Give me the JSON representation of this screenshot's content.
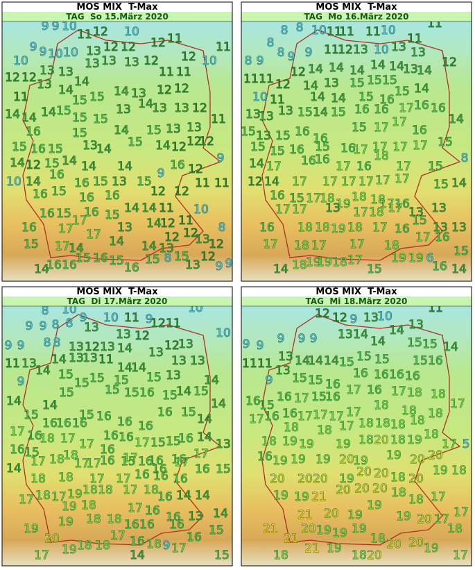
{
  "panels": [
    {
      "title": "MOS MIX  T-Max",
      "subtitle": "TAG  So 15.März 2020",
      "values": [
        9,
        9,
        10,
        11,
        12,
        10,
        12,
        11,
        11,
        9,
        9,
        10,
        10,
        13,
        12,
        12,
        12,
        10,
        10,
        13,
        13,
        13,
        12,
        12,
        12,
        13,
        13,
        14,
        13,
        11,
        11,
        11,
        14,
        14,
        13,
        12,
        12,
        14,
        14,
        14,
        15,
        15,
        15,
        14,
        13,
        13,
        12,
        15,
        15,
        13,
        16,
        15,
        14,
        15,
        13,
        13,
        11,
        15,
        16,
        15,
        13,
        14,
        15,
        14,
        12,
        12,
        12,
        14,
        12,
        15,
        14,
        14,
        14,
        9,
        16,
        12,
        9,
        10,
        14,
        16,
        16,
        15,
        13,
        15,
        12,
        12,
        11,
        11,
        16,
        15,
        16,
        16,
        14,
        14,
        11,
        10,
        16,
        15,
        17,
        16,
        15,
        14,
        12,
        11,
        16,
        17,
        17,
        13,
        12,
        12,
        8,
        15,
        17,
        14,
        14,
        14,
        13,
        13,
        12,
        14,
        16,
        16,
        15,
        16,
        15,
        16,
        15,
        8,
        15,
        13,
        12,
        9,
        9
      ]
    },
    {
      "title": "MOS MIX  T-Max",
      "subtitle": "TAG  Mo 16.März 2020",
      "values": [
        8,
        8,
        10,
        11,
        11,
        11,
        10,
        11,
        8,
        8,
        9,
        9,
        11,
        12,
        13,
        10,
        13,
        11,
        13,
        12,
        8,
        9,
        12,
        14,
        14,
        14,
        14,
        14,
        13,
        14,
        11,
        11,
        12,
        14,
        13,
        15,
        15,
        15,
        10,
        11,
        14,
        14,
        15,
        16,
        15,
        14,
        13,
        13,
        13,
        15,
        14,
        15,
        16,
        16,
        17,
        16,
        16,
        15,
        13,
        15,
        16,
        16,
        15,
        17,
        17,
        16,
        14,
        15,
        15,
        16,
        15,
        16,
        17,
        17,
        17,
        17,
        15,
        14,
        17,
        16,
        16,
        17,
        16,
        18,
        17,
        15,
        8,
        12,
        14,
        17,
        17,
        17,
        17,
        17,
        17,
        15,
        14,
        16,
        15,
        17,
        18,
        19,
        18,
        18,
        17,
        16,
        17,
        17,
        13,
        17,
        18,
        17,
        13,
        13,
        16,
        18,
        18,
        19,
        18,
        17,
        16,
        15,
        13,
        13,
        17,
        18,
        17,
        17,
        18,
        17,
        16,
        14,
        18,
        19,
        19,
        18,
        17,
        15,
        19,
        19,
        6,
        16,
        14,
        15
      ]
    },
    {
      "title": "MOS MIX  T-Max",
      "subtitle": "TAG  Di 17.März 2020",
      "values": [
        8,
        10,
        9,
        10,
        11,
        9,
        10,
        10,
        11,
        12,
        9,
        9,
        8,
        8,
        13,
        13,
        12,
        12,
        9,
        9,
        8,
        8,
        13,
        12,
        13,
        14,
        13,
        13,
        11,
        13,
        14,
        14,
        13,
        13,
        11,
        14,
        14,
        13,
        13,
        9,
        15,
        15,
        15,
        15,
        15,
        13,
        14,
        14,
        15,
        15,
        15,
        16,
        15,
        14,
        15,
        14,
        14,
        15,
        15,
        16,
        16,
        16,
        16,
        15,
        14,
        17,
        16,
        16,
        16,
        16,
        16,
        16,
        17,
        15,
        15,
        16,
        14,
        13,
        16,
        15,
        18,
        17,
        17,
        16,
        18,
        17,
        17,
        16,
        16,
        17,
        14,
        17,
        18,
        17,
        16,
        15,
        16,
        16,
        17,
        16,
        15,
        18,
        18,
        17,
        17,
        16,
        16,
        16,
        17,
        18,
        17,
        19,
        18,
        18,
        17,
        18,
        16,
        14,
        14,
        19,
        18,
        17,
        16,
        16,
        13,
        14,
        19,
        19,
        18,
        18,
        16,
        16,
        16,
        16,
        15,
        20,
        17,
        16,
        18,
        9,
        17,
        17,
        19,
        18,
        18,
        14,
        15
      ]
    },
    {
      "title": "MOS MIX  T-Max",
      "subtitle": "TAG  Mi 18.März 2020",
      "values": [
        12,
        12,
        9,
        13,
        10,
        13,
        11,
        9,
        9,
        9,
        9,
        9,
        13,
        14,
        14,
        14,
        15,
        15,
        14,
        11,
        11,
        13,
        14,
        14,
        14,
        15,
        15,
        15,
        15,
        16,
        9,
        13,
        15,
        15,
        16,
        16,
        16,
        16,
        16,
        16,
        15,
        16,
        17,
        15,
        16,
        17,
        16,
        17,
        18,
        18,
        17,
        17,
        16,
        16,
        17,
        17,
        17,
        17,
        18,
        18,
        18,
        18,
        18,
        17,
        18,
        18,
        18,
        18,
        18,
        17,
        5,
        18,
        19,
        19,
        19,
        18,
        20,
        18,
        19,
        16,
        19,
        19,
        19,
        20,
        19,
        19,
        20,
        20,
        20,
        20,
        18,
        20,
        19,
        18,
        20,
        20,
        20,
        19,
        19,
        19,
        21,
        20,
        20,
        20,
        18,
        18,
        17,
        21,
        21,
        20,
        19,
        19,
        19,
        20,
        17,
        17,
        21,
        20,
        19,
        19,
        19,
        18,
        20,
        20,
        19,
        18,
        18,
        21,
        19,
        18,
        20,
        17
      ]
    }
  ]
}
